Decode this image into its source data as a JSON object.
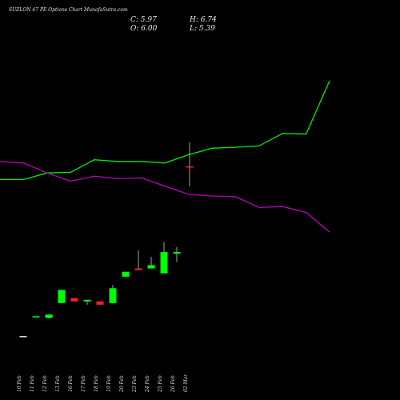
{
  "header": {
    "title": "SUZLON  47 PE Options  Chart  MunafaSutra.com",
    "close_label": "C: 5.97",
    "open_label": "O: 6.00",
    "high_label": "H: 6.74",
    "low_label": "L: 5.39"
  },
  "colors": {
    "background": "#000000",
    "up_candle": "#00ff00",
    "down_candle": "#ff2020",
    "wick": "#cccccc",
    "green_line": "#00ee00",
    "purple_line": "#bb00bb",
    "axis_text": "#dddddd"
  },
  "chart_data": {
    "type": "candlestick",
    "title": "SUZLON  47 PE Options  Chart  MunafaSutra.com",
    "dates": [
      "10 Feb",
      "11 Feb",
      "12 Feb",
      "13 Feb",
      "16 Feb",
      "17 Feb",
      "18 Feb",
      "19 Feb",
      "20 Feb",
      "23 Feb",
      "24 Feb",
      "25 Feb",
      "26 Feb",
      "02 Mar"
    ],
    "candles": [
      {
        "open": 0.85,
        "high": 0.85,
        "low": 0.85,
        "close": 0.85
      },
      {
        "open": 1.45,
        "high": 1.45,
        "low": 1.45,
        "close": 1.45
      },
      {
        "open": 1.4,
        "high": 1.5,
        "low": 1.38,
        "close": 1.5
      },
      {
        "open": 1.85,
        "high": 2.25,
        "low": 1.85,
        "close": 2.25
      },
      {
        "open": 2.0,
        "high": 2.0,
        "low": 1.9,
        "close": 1.9
      },
      {
        "open": 1.9,
        "high": 1.95,
        "low": 1.8,
        "close": 1.95
      },
      {
        "open": 1.9,
        "high": 1.9,
        "low": 1.8,
        "close": 1.8
      },
      {
        "open": 1.85,
        "high": 2.4,
        "low": 1.85,
        "close": 2.3
      },
      {
        "open": 2.65,
        "high": 2.8,
        "low": 2.65,
        "close": 2.8
      },
      {
        "open": 2.9,
        "high": 3.45,
        "low": 2.85,
        "close": 2.85
      },
      {
        "open": 2.9,
        "high": 3.25,
        "low": 2.9,
        "close": 3.0
      },
      {
        "open": 2.75,
        "high": 3.7,
        "low": 2.75,
        "close": 3.4
      },
      {
        "open": 3.35,
        "high": 3.55,
        "low": 3.1,
        "close": 3.4
      },
      {
        "open": 6.0,
        "high": 6.74,
        "low": 5.39,
        "close": 5.97
      }
    ],
    "green_line": [
      5.6,
      5.6,
      5.8,
      5.82,
      6.2,
      6.15,
      6.15,
      6.1,
      6.35,
      6.55,
      6.58,
      6.62,
      7.0,
      6.98,
      8.6
    ],
    "purple_line": [
      6.15,
      6.1,
      5.8,
      5.55,
      5.7,
      5.63,
      5.65,
      5.4,
      5.15,
      5.1,
      5.08,
      4.75,
      4.78,
      4.6,
      4.0
    ],
    "ylim": [
      0,
      10.2
    ],
    "grid": false,
    "legend": "none"
  }
}
